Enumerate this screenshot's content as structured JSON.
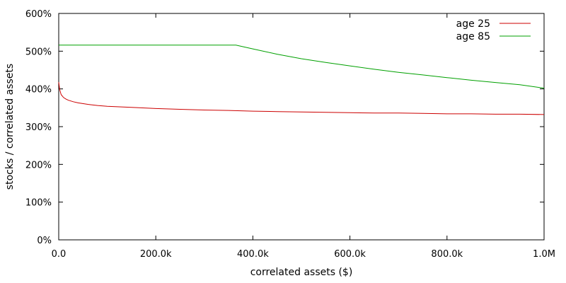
{
  "chart_data": {
    "type": "line",
    "xlabel": "correlated assets ($)",
    "ylabel": "stocks / correlated assets",
    "xlim": [
      0,
      1000000
    ],
    "ylim": [
      0,
      600
    ],
    "x_ticks": [
      {
        "value": 0,
        "label": "0.0"
      },
      {
        "value": 200000,
        "label": "200.0k"
      },
      {
        "value": 400000,
        "label": "400.0k"
      },
      {
        "value": 600000,
        "label": "600.0k"
      },
      {
        "value": 800000,
        "label": "800.0k"
      },
      {
        "value": 1000000,
        "label": "1.0M"
      }
    ],
    "y_ticks": [
      {
        "value": 0,
        "label": "0%"
      },
      {
        "value": 100,
        "label": "100%"
      },
      {
        "value": 200,
        "label": "200%"
      },
      {
        "value": 300,
        "label": "300%"
      },
      {
        "value": 400,
        "label": "400%"
      },
      {
        "value": 500,
        "label": "500%"
      },
      {
        "value": 600,
        "label": "600%"
      }
    ],
    "grid": false,
    "legend_position": "top-right",
    "series": [
      {
        "name": "age 25",
        "color": "#cc0000",
        "x": [
          0,
          2000,
          5000,
          10000,
          15000,
          20000,
          30000,
          40000,
          60000,
          80000,
          100000,
          150000,
          200000,
          250000,
          300000,
          350000,
          400000,
          450000,
          500000,
          550000,
          600000,
          650000,
          700000,
          750000,
          800000,
          850000,
          900000,
          950000,
          1000000
        ],
        "values": [
          418,
          398,
          385,
          377,
          373,
          370,
          366,
          363,
          359,
          356,
          354,
          351,
          348,
          346,
          344,
          343,
          341,
          340,
          339,
          338,
          337,
          336,
          336,
          335,
          334,
          334,
          333,
          333,
          332
        ]
      },
      {
        "name": "age 85",
        "color": "#00a000",
        "x": [
          0,
          100000,
          200000,
          300000,
          365000,
          400000,
          450000,
          500000,
          550000,
          600000,
          650000,
          700000,
          750000,
          800000,
          850000,
          900000,
          950000,
          1000000
        ],
        "values": [
          516,
          516,
          516,
          516,
          516,
          506,
          492,
          480,
          470,
          461,
          452,
          444,
          437,
          430,
          423,
          417,
          411,
          402
        ]
      }
    ]
  }
}
